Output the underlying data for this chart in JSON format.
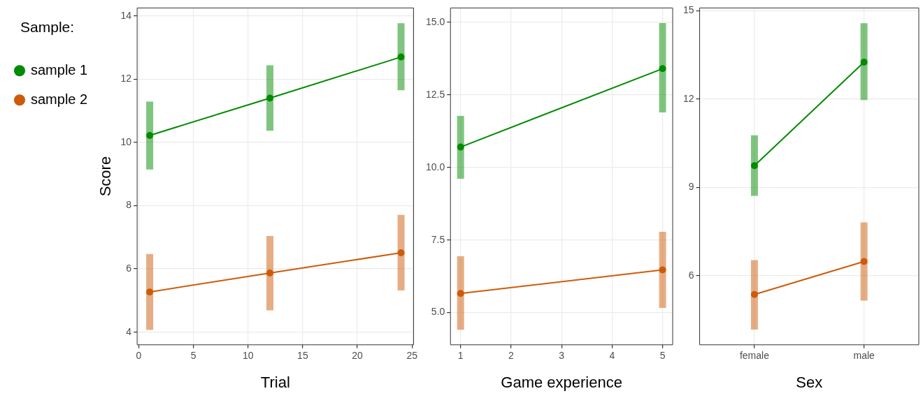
{
  "chart_data": [
    {
      "type": "line",
      "xlabel": "Trial",
      "ylabel": "Score",
      "legend_title": "Sample:",
      "legend": "top left",
      "grid": true,
      "marker": "circle",
      "x": [
        1,
        12,
        24
      ],
      "xlim": [
        -0.15,
        25.15
      ],
      "xticks": [
        0,
        5,
        10,
        15,
        20,
        25
      ],
      "ylim": [
        3.6,
        14.25
      ],
      "yticks": [
        4,
        6,
        8,
        10,
        12,
        14
      ],
      "series": [
        {
          "name": "sample 1",
          "color": "#008b00",
          "values": [
            10.22,
            11.4,
            12.7
          ],
          "errors": [
            [
              9.14,
              11.29
            ],
            [
              10.37,
              12.44
            ],
            [
              11.65,
              13.77
            ]
          ]
        },
        {
          "name": "sample 2",
          "color": "#cd5b0a",
          "values": [
            5.27,
            5.87,
            6.51
          ],
          "errors": [
            [
              4.07,
              6.47
            ],
            [
              4.69,
              7.04
            ],
            [
              5.32,
              7.71
            ]
          ]
        }
      ]
    },
    {
      "type": "line",
      "xlabel": "Game experience",
      "grid": true,
      "marker": "circle",
      "x": [
        1,
        5
      ],
      "xlim": [
        0.8,
        5.2
      ],
      "xticks": [
        1,
        2,
        3,
        4,
        5
      ],
      "ylim": [
        3.89,
        15.49
      ],
      "yticks": [
        {
          "value": 5,
          "label": "5.0"
        },
        {
          "value": 7.5,
          "label": "7.5"
        },
        {
          "value": 10,
          "label": "10.0"
        },
        {
          "value": 12.5,
          "label": "12.5"
        },
        {
          "value": 15,
          "label": "15.0"
        }
      ],
      "series": [
        {
          "color": "#008b00",
          "values": [
            10.7,
            13.4
          ],
          "errors": [
            [
              9.61,
              11.77
            ],
            [
              11.89,
              14.97
            ]
          ]
        },
        {
          "color": "#cd5b0a",
          "values": [
            5.66,
            6.47
          ],
          "errors": [
            [
              4.41,
              6.94
            ],
            [
              5.16,
              7.78
            ]
          ]
        }
      ]
    },
    {
      "type": "line",
      "xlabel": "Sex",
      "grid": true,
      "marker": "circle",
      "categories": [
        "female",
        "male"
      ],
      "ylim": [
        3.65,
        15.1
      ],
      "yticks": [
        6,
        9,
        12,
        15
      ],
      "series": [
        {
          "color": "#008b00",
          "values": [
            9.74,
            13.26
          ],
          "errors": [
            [
              8.71,
              10.77
            ],
            [
              11.97,
              14.58
            ]
          ]
        },
        {
          "color": "#cd5b0a",
          "values": [
            5.36,
            6.48
          ],
          "errors": [
            [
              4.17,
              6.53
            ],
            [
              5.15,
              7.81
            ]
          ]
        }
      ]
    }
  ]
}
